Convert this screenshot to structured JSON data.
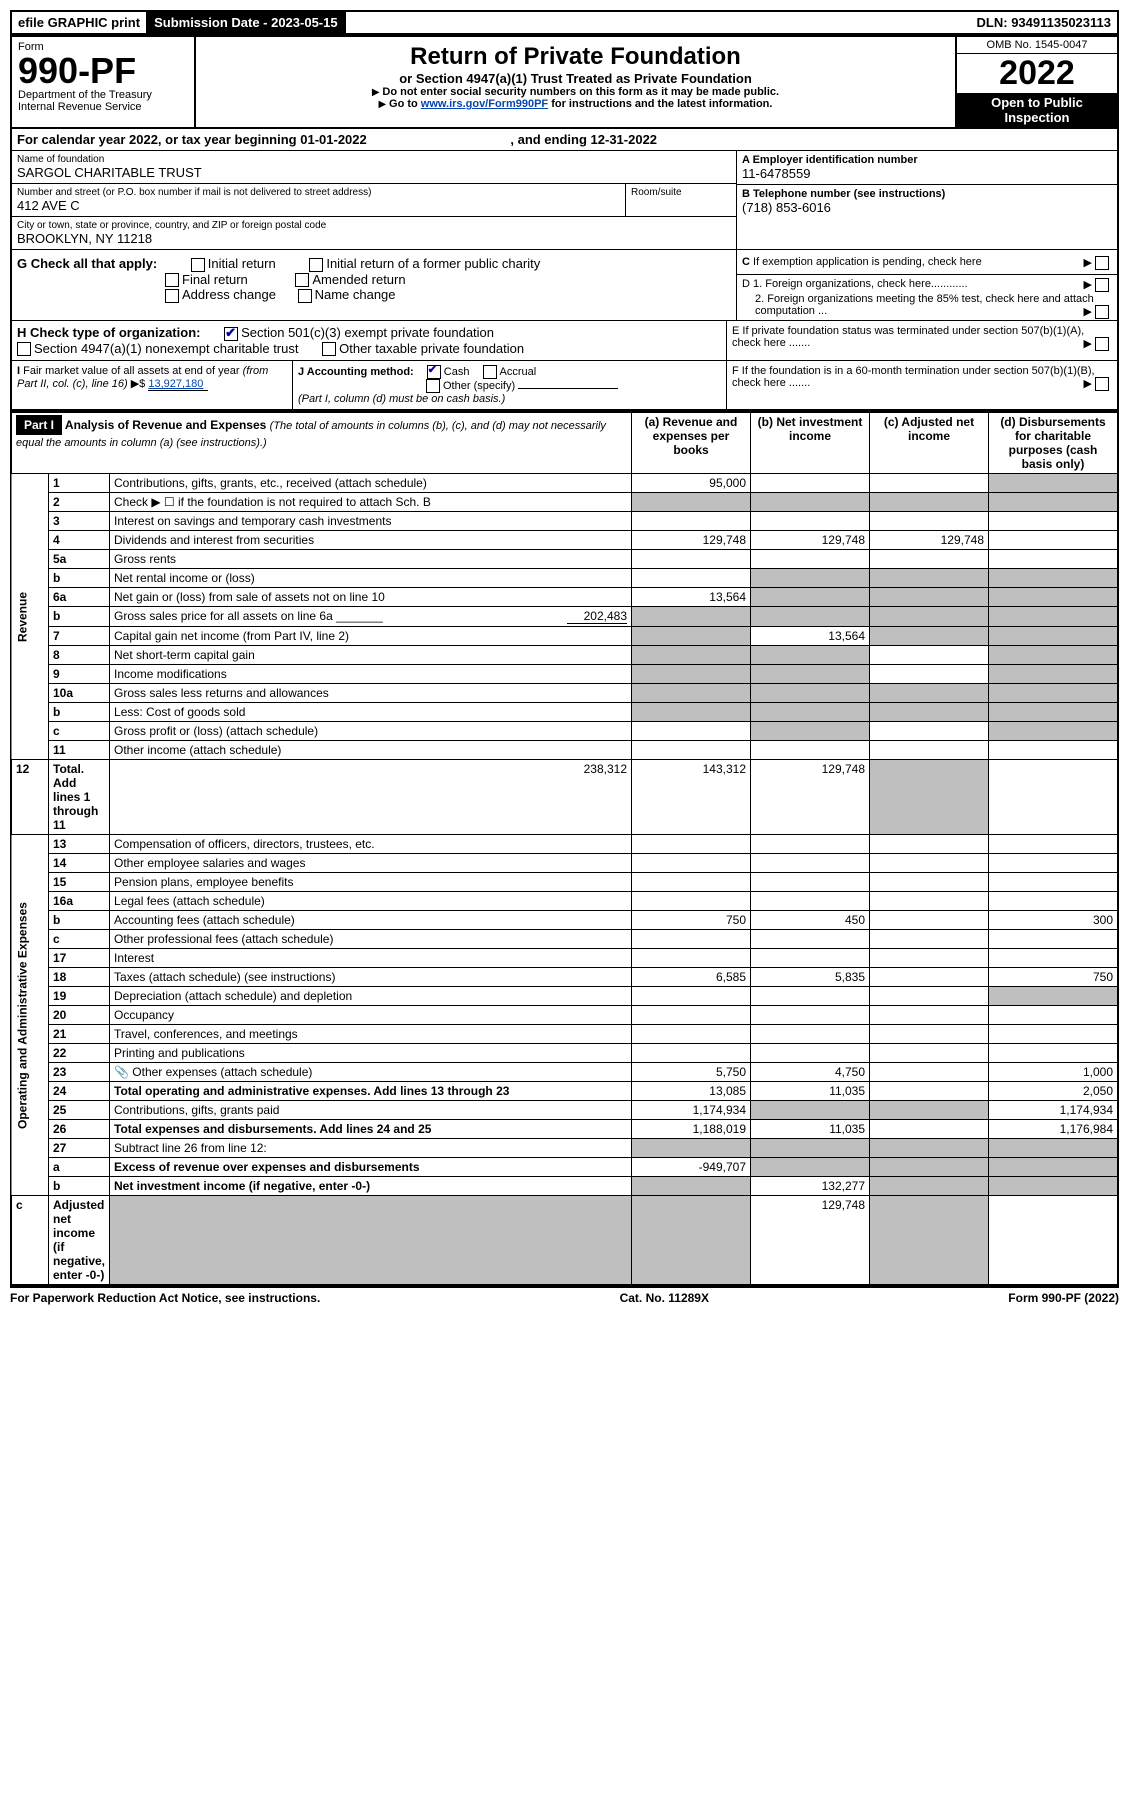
{
  "top": {
    "efile": "efile GRAPHIC print",
    "submission_label": "Submission Date - 2023-05-15",
    "dln": "DLN: 93491135023113"
  },
  "header": {
    "form_word": "Form",
    "form_number": "990-PF",
    "dept": "Department of the Treasury",
    "irs": "Internal Revenue Service",
    "title": "Return of Private Foundation",
    "subtitle": "or Section 4947(a)(1) Trust Treated as Private Foundation",
    "warn": "Do not enter social security numbers on this form as it may be made public.",
    "goto_pre": "Go to ",
    "goto_link": "www.irs.gov/Form990PF",
    "goto_post": " for instructions and the latest information.",
    "omb": "OMB No. 1545-0047",
    "year": "2022",
    "open": "Open to Public Inspection"
  },
  "cal": {
    "text_pre": "For calendar year 2022, or tax year beginning ",
    "begin": "01-01-2022",
    "text_mid": ", and ending ",
    "end": "12-31-2022"
  },
  "id": {
    "name_label": "Name of foundation",
    "name": "SARGOL CHARITABLE TRUST",
    "addr_label": "Number and street (or P.O. box number if mail is not delivered to street address)",
    "addr": "412 AVE C",
    "room_label": "Room/suite",
    "city_label": "City or town, state or province, country, and ZIP or foreign postal code",
    "city": "BROOKLYN, NY  11218",
    "a_label": "A Employer identification number",
    "a_val": "11-6478559",
    "b_label": "B Telephone number (see instructions)",
    "b_val": "(718) 853-6016",
    "c_label": "C If exemption application is pending, check here",
    "d1_label": "D 1. Foreign organizations, check here............",
    "d2_label": "2. Foreign organizations meeting the 85% test, check here and attach computation ...",
    "e_label": "E  If private foundation status was terminated under section 507(b)(1)(A), check here .......",
    "f_label": "F  If the foundation is in a 60-month termination under section 507(b)(1)(B), check here .......",
    "g_label": "G Check all that apply:",
    "g_opts": [
      "Initial return",
      "Initial return of a former public charity",
      "Final return",
      "Amended return",
      "Address change",
      "Name change"
    ],
    "h_label": "H Check type of organization:",
    "h_opts": [
      "Section 501(c)(3) exempt private foundation",
      "Section 4947(a)(1) nonexempt charitable trust",
      "Other taxable private foundation"
    ],
    "i_label": "I Fair market value of all assets at end of year (from Part II, col. (c), line 16)",
    "i_val": "13,927,180",
    "j_label": "J Accounting method:",
    "j_cash": "Cash",
    "j_accrual": "Accrual",
    "j_other": "Other (specify)",
    "j_note": "(Part I, column (d) must be on cash basis.)"
  },
  "part1": {
    "label": "Part I",
    "title": "Analysis of Revenue and Expenses",
    "title_note": "(The total of amounts in columns (b), (c), and (d) may not necessarily equal the amounts in column (a) (see instructions).)",
    "cols": {
      "a": "(a) Revenue and expenses per books",
      "b": "(b) Net investment income",
      "c": "(c) Adjusted net income",
      "d": "(d) Disbursements for charitable purposes (cash basis only)"
    },
    "sections": {
      "rev": "Revenue",
      "op": "Operating and Administrative Expenses"
    },
    "rows": [
      {
        "n": "1",
        "t": "Contributions, gifts, grants, etc., received (attach schedule)",
        "a": "95,000",
        "d_grey": true
      },
      {
        "n": "2",
        "t": "Check ▶ ☐ if the foundation is not required to attach Sch. B",
        "no_cols": true
      },
      {
        "n": "3",
        "t": "Interest on savings and temporary cash investments"
      },
      {
        "n": "4",
        "t": "Dividends and interest from securities",
        "a": "129,748",
        "b": "129,748",
        "c": "129,748"
      },
      {
        "n": "5a",
        "t": "Gross rents"
      },
      {
        "n": "b",
        "t": "Net rental income or (loss)",
        "b_grey": true,
        "c_grey": true,
        "d_grey": true,
        "a_grey": false
      },
      {
        "n": "6a",
        "t": "Net gain or (loss) from sale of assets not on line 10",
        "a": "13,564",
        "b_grey": true,
        "c_grey": true,
        "d_grey": true
      },
      {
        "n": "b",
        "t": "Gross sales price for all assets on line 6a _______",
        "inline_val": "202,483",
        "a_grey": true,
        "b_grey": true,
        "c_grey": true,
        "d_grey": true
      },
      {
        "n": "7",
        "t": "Capital gain net income (from Part IV, line 2)",
        "a_grey": true,
        "b": "13,564",
        "c_grey": true,
        "d_grey": true
      },
      {
        "n": "8",
        "t": "Net short-term capital gain",
        "a_grey": true,
        "b_grey": true,
        "d_grey": true
      },
      {
        "n": "9",
        "t": "Income modifications",
        "a_grey": true,
        "b_grey": true,
        "d_grey": true
      },
      {
        "n": "10a",
        "t": "Gross sales less returns and allowances",
        "a_grey": true,
        "b_grey": true,
        "c_grey": true,
        "d_grey": true
      },
      {
        "n": "b",
        "t": "Less: Cost of goods sold",
        "a_grey": true,
        "b_grey": true,
        "c_grey": true,
        "d_grey": true
      },
      {
        "n": "c",
        "t": "Gross profit or (loss) (attach schedule)",
        "b_grey": true,
        "d_grey": true
      },
      {
        "n": "11",
        "t": "Other income (attach schedule)"
      },
      {
        "n": "12",
        "t": "Total. Add lines 1 through 11",
        "bold": true,
        "a": "238,312",
        "b": "143,312",
        "c": "129,748",
        "d_grey": true
      },
      {
        "sec_break": true
      },
      {
        "n": "13",
        "t": "Compensation of officers, directors, trustees, etc."
      },
      {
        "n": "14",
        "t": "Other employee salaries and wages"
      },
      {
        "n": "15",
        "t": "Pension plans, employee benefits"
      },
      {
        "n": "16a",
        "t": "Legal fees (attach schedule)"
      },
      {
        "n": "b",
        "t": "Accounting fees (attach schedule)",
        "a": "750",
        "b": "450",
        "d": "300"
      },
      {
        "n": "c",
        "t": "Other professional fees (attach schedule)"
      },
      {
        "n": "17",
        "t": "Interest"
      },
      {
        "n": "18",
        "t": "Taxes (attach schedule) (see instructions)",
        "a": "6,585",
        "b": "5,835",
        "d": "750"
      },
      {
        "n": "19",
        "t": "Depreciation (attach schedule) and depletion",
        "d_grey": true
      },
      {
        "n": "20",
        "t": "Occupancy"
      },
      {
        "n": "21",
        "t": "Travel, conferences, and meetings"
      },
      {
        "n": "22",
        "t": "Printing and publications"
      },
      {
        "n": "23",
        "t": "Other expenses (attach schedule)",
        "icon": "📎",
        "a": "5,750",
        "b": "4,750",
        "d": "1,000"
      },
      {
        "n": "24",
        "t": "Total operating and administrative expenses. Add lines 13 through 23",
        "bold": true,
        "a": "13,085",
        "b": "11,035",
        "d": "2,050"
      },
      {
        "n": "25",
        "t": "Contributions, gifts, grants paid",
        "a": "1,174,934",
        "b_grey": true,
        "c_grey": true,
        "d": "1,174,934"
      },
      {
        "n": "26",
        "t": "Total expenses and disbursements. Add lines 24 and 25",
        "bold": true,
        "a": "1,188,019",
        "b": "11,035",
        "d": "1,176,984"
      },
      {
        "n": "27",
        "t": "Subtract line 26 from line 12:",
        "a_grey": true,
        "b_grey": true,
        "c_grey": true,
        "d_grey": true
      },
      {
        "n": "a",
        "t": "Excess of revenue over expenses and disbursements",
        "bold": true,
        "a": "-949,707",
        "b_grey": true,
        "c_grey": true,
        "d_grey": true
      },
      {
        "n": "b",
        "t": "Net investment income (if negative, enter -0-)",
        "bold": true,
        "a_grey": true,
        "b": "132,277",
        "c_grey": true,
        "d_grey": true
      },
      {
        "n": "c",
        "t": "Adjusted net income (if negative, enter -0-)",
        "bold": true,
        "a_grey": true,
        "b_grey": true,
        "c": "129,748",
        "d_grey": true
      }
    ]
  },
  "footer": {
    "pra": "For Paperwork Reduction Act Notice, see instructions.",
    "cat": "Cat. No. 11289X",
    "form": "Form 990-PF (2022)"
  }
}
